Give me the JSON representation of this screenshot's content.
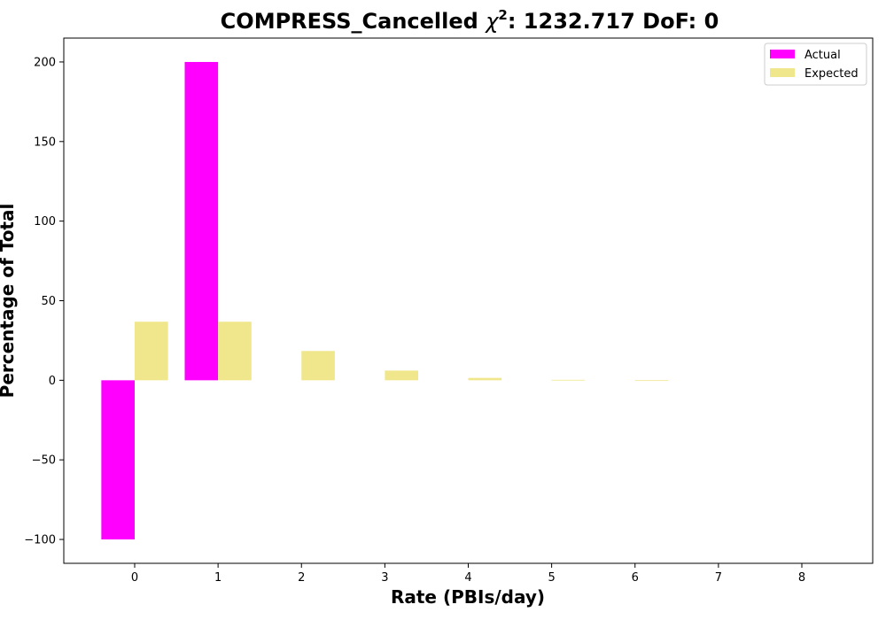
{
  "chart_data": {
    "type": "bar",
    "title_main": "COMPRESS_Cancelled ",
    "title_chi": "χ",
    "title_sup": "2",
    "title_rest": ": 1232.717 DoF: 0",
    "xlabel": "Rate (PBIs/day)",
    "ylabel": "Percentage of Total",
    "categories": [
      "0",
      "1",
      "2",
      "3",
      "4",
      "5",
      "6",
      "7",
      "8"
    ],
    "x": [
      0,
      1,
      2,
      3,
      4,
      5,
      6,
      7,
      8
    ],
    "xlim": [
      -0.85,
      8.85
    ],
    "ylim": [
      -115,
      215
    ],
    "yticks": [
      -100,
      -50,
      0,
      50,
      100,
      150,
      200
    ],
    "ytick_labels": [
      "−100",
      "−50",
      "0",
      "50",
      "100",
      "150",
      "200"
    ],
    "grid": false,
    "legend_position": "top-right",
    "series": [
      {
        "name": "Actual",
        "color": "#ff00ff",
        "values": [
          -100,
          200,
          0,
          0,
          0,
          0,
          0,
          0,
          0
        ]
      },
      {
        "name": "Expected",
        "color": "#f0e68c",
        "values": [
          36.8,
          36.8,
          18.4,
          6.1,
          1.5,
          0.3,
          0.05,
          0.0,
          0.0
        ]
      }
    ]
  }
}
